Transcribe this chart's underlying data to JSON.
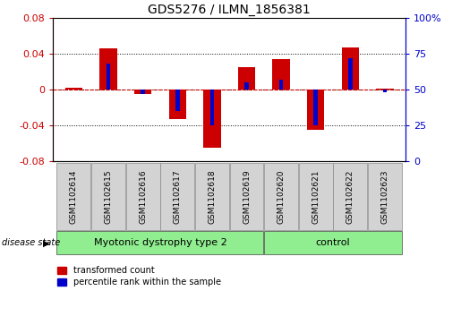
{
  "title": "GDS5276 / ILMN_1856381",
  "samples": [
    "GSM1102614",
    "GSM1102615",
    "GSM1102616",
    "GSM1102617",
    "GSM1102618",
    "GSM1102619",
    "GSM1102620",
    "GSM1102621",
    "GSM1102622",
    "GSM1102623"
  ],
  "red_values": [
    0.002,
    0.046,
    -0.005,
    -0.033,
    -0.065,
    0.025,
    0.034,
    -0.045,
    0.047,
    0.001
  ],
  "blue_percentiles": [
    50,
    68,
    47,
    35,
    25,
    55,
    57,
    25,
    72,
    48
  ],
  "ylim": [
    -0.08,
    0.08
  ],
  "y2lim": [
    0,
    100
  ],
  "yticks": [
    -0.08,
    -0.04,
    0.0,
    0.04,
    0.08
  ],
  "y2ticks": [
    0,
    25,
    50,
    75,
    100
  ],
  "ytick_labels": [
    "-0.08",
    "-0.04",
    "0",
    "0.04",
    "0.08"
  ],
  "y2tick_labels": [
    "0",
    "25",
    "50",
    "75",
    "100%"
  ],
  "red_color": "#cc0000",
  "blue_color": "#0000cc",
  "red_bar_width": 0.5,
  "blue_bar_width": 0.12,
  "group1_label": "Myotonic dystrophy type 2",
  "group2_label": "control",
  "group1_color": "#90ee90",
  "group2_color": "#90ee90",
  "group1_indices": [
    0,
    1,
    2,
    3,
    4,
    5
  ],
  "group2_indices": [
    6,
    7,
    8,
    9
  ],
  "disease_state_label": "disease state",
  "legend1": "transformed count",
  "legend2": "percentile rank within the sample",
  "plot_bg": "#ffffff",
  "label_area_bg": "#d3d3d3",
  "hline_dotted_at": [
    -0.04,
    0.04
  ],
  "hline_zero_dotted": 0.0
}
